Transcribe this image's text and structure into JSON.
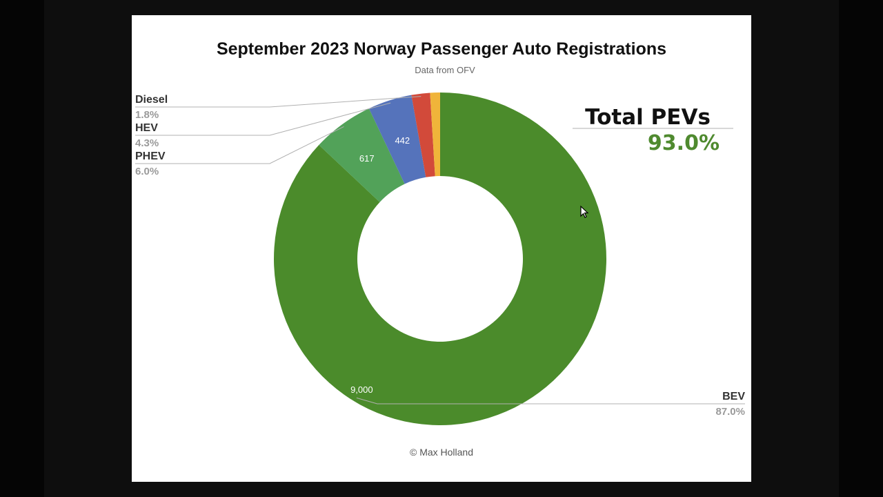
{
  "chart_data": {
    "type": "pie",
    "title": "September 2023 Norway Passenger Auto Registrations",
    "subtitle": "Data from OFV",
    "series": [
      {
        "name": "BEV",
        "value": 9000,
        "percent": "87.0%",
        "value_label": "9,000",
        "color": "#4b8b2b"
      },
      {
        "name": "PHEV",
        "value": 617,
        "percent": "6.0%",
        "value_label": "617",
        "color": "#52a259"
      },
      {
        "name": "HEV",
        "value": 442,
        "percent": "4.3%",
        "value_label": "442",
        "color": "#5573bb"
      },
      {
        "name": "Diesel",
        "value": 186,
        "percent": "1.8%",
        "value_label": "",
        "color": "#d24a3a"
      },
      {
        "name": "",
        "value": 100,
        "percent": "",
        "value_label": "",
        "color": "#f0b43a"
      }
    ],
    "donut": true,
    "legend": "none"
  },
  "callout": {
    "title": "Total PEVs",
    "value": "93.0%",
    "value_color": "#4f8a2f"
  },
  "credit": "© Max Holland",
  "cursor_icon": "arrow-cursor-icon"
}
